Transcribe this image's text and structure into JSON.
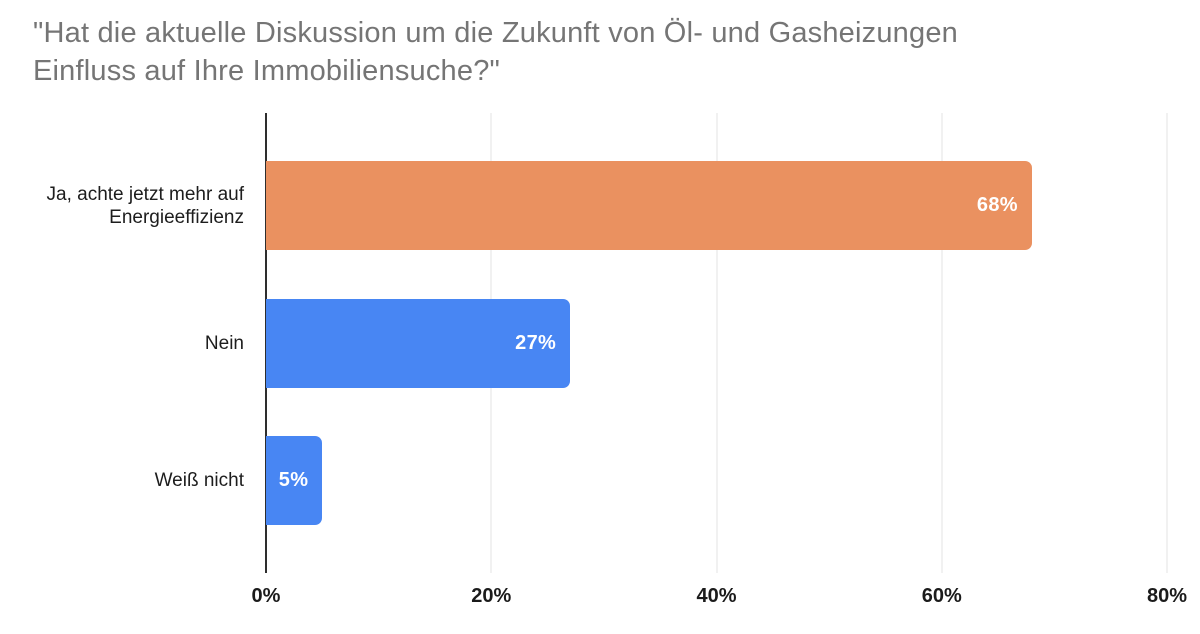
{
  "chart_data": {
    "type": "bar",
    "orientation": "horizontal",
    "title": "\"Hat die aktuelle Diskussion um die Zukunft von Öl- und Gasheizungen Einfluss auf Ihre Immobiliensuche?\"",
    "title_lines": [
      "\"Hat die aktuelle Diskussion um die Zukunft von Öl- und Gasheizungen",
      "Einfluss auf Ihre Immobiliensuche?\""
    ],
    "categories": [
      "Ja, achte jetzt mehr auf Energieeffizienz",
      "Nein",
      "Weiß nicht"
    ],
    "category_lines": [
      [
        "Ja, achte jetzt mehr auf",
        "Energieeffizienz"
      ],
      [
        "Nein"
      ],
      [
        "Weiß nicht"
      ]
    ],
    "values": [
      68,
      27,
      5
    ],
    "value_labels": [
      "68%",
      "27%",
      "5%"
    ],
    "bar_colors": [
      "#EA9160",
      "#4886F3",
      "#4886F3"
    ],
    "xlabel": "",
    "ylabel": "",
    "x_axis": {
      "tick_labels": [
        "0%",
        "20%",
        "40%",
        "60%",
        "80%"
      ],
      "tick_values": [
        0,
        20,
        40,
        60,
        80
      ],
      "max": 80
    },
    "grid": true,
    "legend": "none"
  },
  "colors": {
    "background": "#ffffff",
    "title_text": "#757575",
    "category_text": "#1d1d1d",
    "axis_label_text": "#1b1b1b",
    "bar_value_text": "#ffffff",
    "gridline": "#e3e3e3",
    "axis_line": "#2e2e2e",
    "orange": "#EA9160",
    "blue": "#4886F3"
  }
}
